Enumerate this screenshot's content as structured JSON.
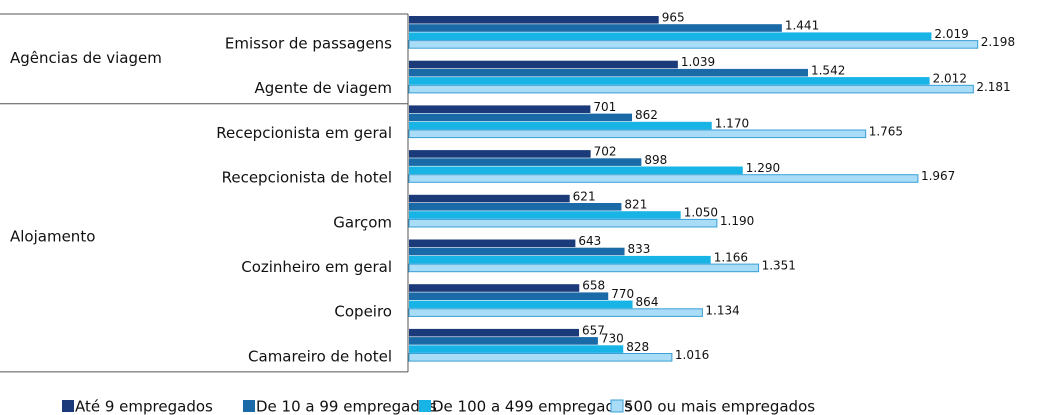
{
  "chart_data": {
    "type": "bar",
    "orientation": "horizontal",
    "groups": [
      {
        "name": "Agências de viagem",
        "categories": [
          "Emissor de passagens",
          "Agente de viagem"
        ]
      },
      {
        "name": "Alojamento",
        "categories": [
          "Recepcionista em geral",
          "Recepcionista de hotel",
          "Garçom",
          "Cozinheiro em geral",
          "Copeiro",
          "Camareiro de hotel"
        ]
      }
    ],
    "xlim": [
      0,
      2400
    ],
    "series": [
      {
        "name": "Até 9 empregados",
        "color": "#1b3a7a",
        "values": [
          965,
          1039,
          701,
          702,
          621,
          643,
          658,
          657
        ],
        "value_labels": [
          "965",
          "1.039",
          "701",
          "702",
          "621",
          "643",
          "658",
          "657"
        ]
      },
      {
        "name": "De 10 a 99 empregados",
        "color": "#1a6aa8",
        "values": [
          1441,
          1542,
          862,
          898,
          821,
          833,
          770,
          730
        ],
        "value_labels": [
          "1.441",
          "1.542",
          "862",
          "898",
          "821",
          "833",
          "770",
          "730"
        ]
      },
      {
        "name": "De 100 a 499 empregados",
        "color": "#19b4e6",
        "values": [
          2019,
          2012,
          1170,
          1290,
          1050,
          1166,
          864,
          828
        ],
        "value_labels": [
          "2.019",
          "2.012",
          "1.170",
          "1.290",
          "1.050",
          "1.166",
          "864",
          "828"
        ]
      },
      {
        "name": "500 ou mais empregados",
        "color": "#a9dcf6",
        "values": [
          2198,
          2181,
          1765,
          1967,
          1190,
          1351,
          1134,
          1016
        ],
        "value_labels": [
          "2.198",
          "2.181",
          "1.765",
          "1.967",
          "1.190",
          "1.351",
          "1.134",
          "1.016"
        ]
      }
    ],
    "legend": "bottom"
  }
}
